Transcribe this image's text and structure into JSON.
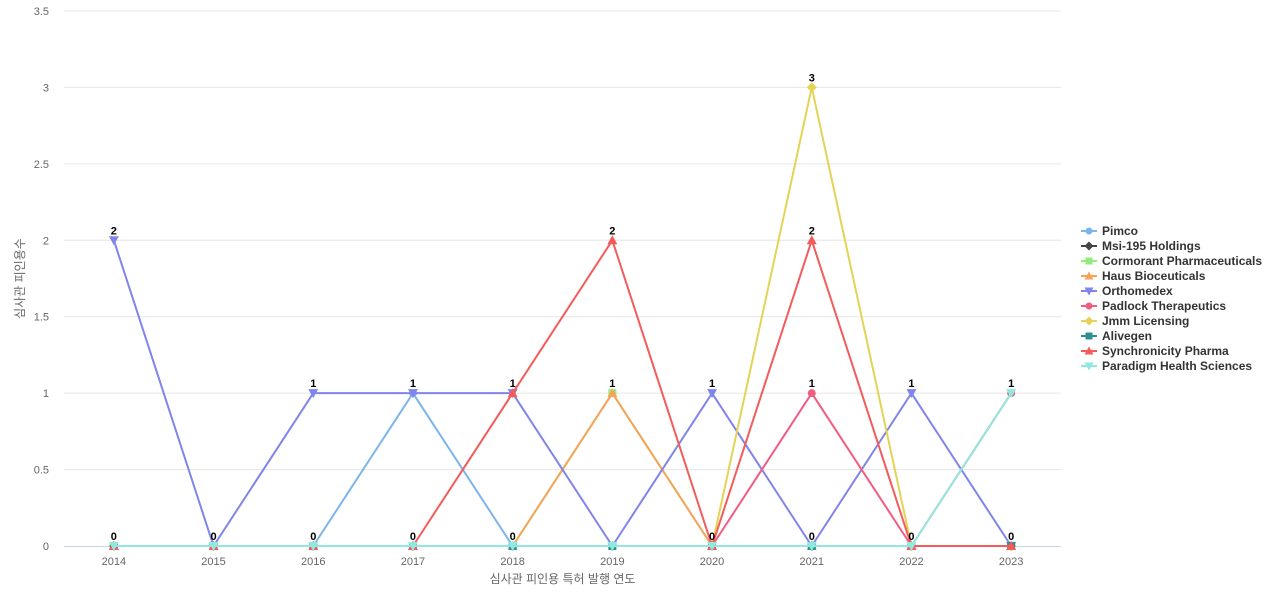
{
  "chart_data": {
    "type": "line",
    "title": "",
    "xlabel": "심사관 피인용 특허 발행 연도",
    "ylabel": "심사관 피인용수",
    "x": [
      "2014",
      "2015",
      "2016",
      "2017",
      "2018",
      "2019",
      "2020",
      "2021",
      "2022",
      "2023"
    ],
    "ylim": [
      0,
      3.5
    ],
    "yticks": [
      "0",
      "0.5",
      "1",
      "1.5",
      "2",
      "2.5",
      "3",
      "3.5"
    ],
    "grid": true,
    "legend_position": "right",
    "series": [
      {
        "name": "Pimco",
        "color": "#7cb5ec",
        "marker": "circle",
        "values": [
          0,
          0,
          0,
          1,
          0,
          0,
          0,
          0,
          0,
          0
        ]
      },
      {
        "name": "Msi-195 Holdings",
        "color": "#434348",
        "marker": "diamond",
        "values": [
          0,
          0,
          0,
          0,
          0,
          0,
          0,
          0,
          0,
          0
        ]
      },
      {
        "name": "Cormorant Pharmaceuticals",
        "color": "#90ed7d",
        "marker": "square",
        "values": [
          0,
          0,
          0,
          0,
          0,
          1,
          0,
          0,
          0,
          0
        ]
      },
      {
        "name": "Haus Bioceuticals",
        "color": "#f7a35c",
        "marker": "triangle",
        "values": [
          0,
          0,
          0,
          0,
          0,
          1,
          0,
          0,
          0,
          0
        ]
      },
      {
        "name": "Orthomedex",
        "color": "#8085e9",
        "marker": "triangle-down",
        "values": [
          2,
          0,
          1,
          1,
          1,
          0,
          1,
          0,
          1,
          0
        ]
      },
      {
        "name": "Padlock Therapeutics",
        "color": "#f15c80",
        "marker": "circle",
        "values": [
          0,
          0,
          0,
          0,
          0,
          0,
          0,
          1,
          0,
          1
        ]
      },
      {
        "name": "Jmm Licensing",
        "color": "#e4d354",
        "marker": "diamond",
        "values": [
          0,
          0,
          0,
          0,
          0,
          0,
          0,
          3,
          0,
          0
        ]
      },
      {
        "name": "Alivegen",
        "color": "#2b908f",
        "marker": "square",
        "values": [
          0,
          0,
          0,
          0,
          0,
          0,
          0,
          0,
          0,
          0
        ]
      },
      {
        "name": "Synchronicity Pharma",
        "color": "#f45b5b",
        "marker": "triangle",
        "values": [
          0,
          0,
          0,
          0,
          1,
          2,
          0,
          2,
          0,
          0
        ]
      },
      {
        "name": "Paradigm Health Sciences",
        "color": "#91e8e1",
        "marker": "triangle-down",
        "values": [
          0,
          0,
          0,
          0,
          0,
          0,
          0,
          0,
          0,
          1
        ]
      }
    ],
    "data_labels": [
      {
        "x": "2014",
        "y": 2,
        "text": "2"
      },
      {
        "x": "2014",
        "y": 0,
        "text": "0"
      },
      {
        "x": "2015",
        "y": 0,
        "text": "0"
      },
      {
        "x": "2016",
        "y": 1,
        "text": "1"
      },
      {
        "x": "2016",
        "y": 0,
        "text": "0"
      },
      {
        "x": "2017",
        "y": 1,
        "text": "1"
      },
      {
        "x": "2017",
        "y": 0,
        "text": "0"
      },
      {
        "x": "2018",
        "y": 1,
        "text": "1"
      },
      {
        "x": "2018",
        "y": 0,
        "text": "0"
      },
      {
        "x": "2019",
        "y": 2,
        "text": "2"
      },
      {
        "x": "2019",
        "y": 1,
        "text": "1"
      },
      {
        "x": "2020",
        "y": 1,
        "text": "1"
      },
      {
        "x": "2020",
        "y": 0,
        "text": "0"
      },
      {
        "x": "2021",
        "y": 3,
        "text": "3"
      },
      {
        "x": "2021",
        "y": 2,
        "text": "2"
      },
      {
        "x": "2021",
        "y": 1,
        "text": "1"
      },
      {
        "x": "2021",
        "y": 0,
        "text": "0"
      },
      {
        "x": "2022",
        "y": 1,
        "text": "1"
      },
      {
        "x": "2022",
        "y": 0,
        "text": "0"
      },
      {
        "x": "2023",
        "y": 1,
        "text": "1"
      },
      {
        "x": "2023",
        "y": 0,
        "text": "0"
      }
    ]
  }
}
